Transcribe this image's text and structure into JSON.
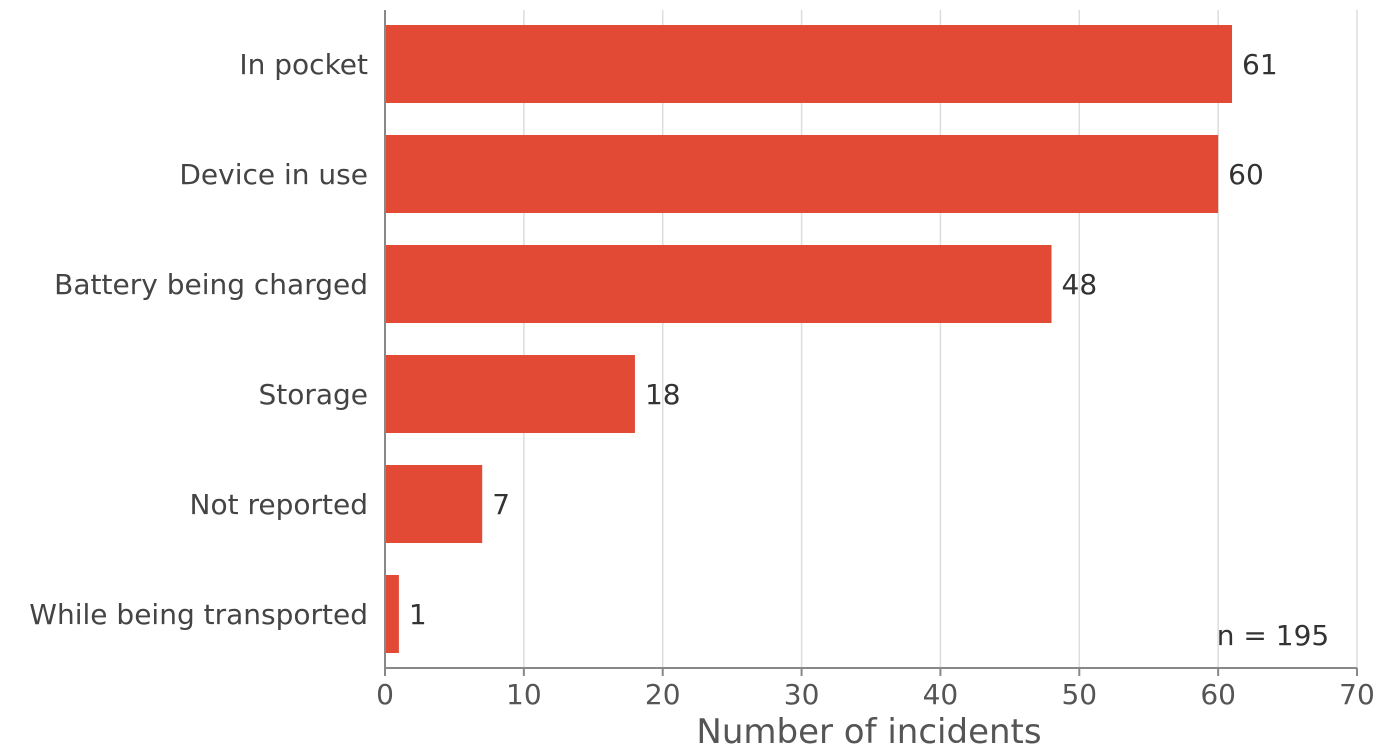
{
  "chart_data": {
    "type": "bar",
    "orientation": "horizontal",
    "categories": [
      "In pocket",
      "Device in use",
      "Battery being charged",
      "Storage",
      "Not reported",
      "While being transported"
    ],
    "values": [
      61,
      60,
      48,
      18,
      7,
      1
    ],
    "xlabel": "Number of incidents",
    "ylabel": "",
    "xlim": [
      0,
      70
    ],
    "xticks": [
      "0",
      "10",
      "20",
      "30",
      "40",
      "50",
      "60",
      "70"
    ],
    "grid": "vertical",
    "annotation": "n = 195",
    "bar_color": "#e24a36",
    "grid_color": "#dddddd",
    "axis_color": "#888888"
  }
}
